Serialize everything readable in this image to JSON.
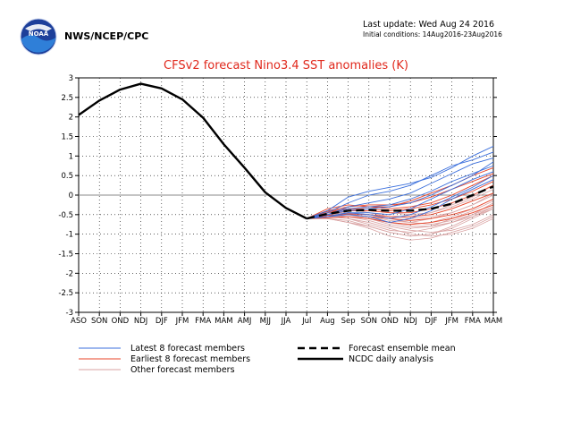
{
  "header": {
    "agency": "NWS/NCEP/CPC",
    "last_update": "Last update: Wed Aug 24 2016",
    "initial_conditions": "Initial conditions: 14Aug2016-23Aug2016",
    "logo_text": "NOAA"
  },
  "colors": {
    "title": "#e0281c",
    "latest": "#3b6fdc",
    "earliest": "#e8452a",
    "other": "#d9a2a2",
    "analysis": "#000000",
    "ensemble": "#000000",
    "grid": "#000000",
    "zero_line": "#888888"
  },
  "chart_data": {
    "type": "line",
    "title": "CFSv2 forecast Nino3.4 SST anomalies (K)",
    "xlabel": "",
    "ylabel": "",
    "categories": [
      "ASO",
      "SON",
      "OND",
      "NDJ",
      "DJF",
      "JFM",
      "FMA",
      "MAM",
      "AMJ",
      "MJJ",
      "JJA",
      "Jul",
      "Aug",
      "Sep",
      "SON",
      "OND",
      "NDJ",
      "DJF",
      "JFM",
      "FMA",
      "MAM"
    ],
    "ylim": [
      -3,
      3
    ],
    "yticks": [
      "3",
      "2.5",
      "2",
      "1.5",
      "1",
      "0.5",
      "0",
      "-0.5",
      "-1",
      "-1.5",
      "-2",
      "-2.5",
      "-3"
    ],
    "grid": true,
    "legend_position": "bottom",
    "legend": {
      "latest": "Latest 8 forecast members",
      "earliest": "Earliest 8 forecast members",
      "other": "Other forecast members",
      "ensemble": "Forecast ensemble mean",
      "analysis": "NCDC daily analysis"
    },
    "analysis": {
      "name": "NCDC daily analysis",
      "x": [
        0,
        1,
        2,
        3,
        4,
        5,
        6,
        7,
        8,
        9,
        10,
        11
      ],
      "values": [
        2.05,
        2.42,
        2.7,
        2.85,
        2.73,
        2.45,
        1.98,
        1.3,
        0.7,
        0.07,
        -0.33,
        -0.6
      ]
    },
    "ensemble_mean": {
      "name": "Forecast ensemble mean",
      "x": [
        11,
        12,
        13,
        14,
        15,
        16,
        17,
        18,
        19,
        20
      ],
      "values": [
        -0.6,
        -0.48,
        -0.4,
        -0.38,
        -0.4,
        -0.4,
        -0.35,
        -0.22,
        0.0,
        0.22
      ]
    },
    "forecast_x": [
      11,
      12,
      13,
      14,
      15,
      16,
      17,
      18,
      19,
      20
    ],
    "latest_members": [
      [
        -0.6,
        -0.4,
        -0.05,
        0.1,
        0.2,
        0.3,
        0.45,
        0.7,
        1.0,
        1.25
      ],
      [
        -0.6,
        -0.45,
        -0.2,
        0.0,
        0.1,
        0.25,
        0.5,
        0.75,
        0.9,
        1.1
      ],
      [
        -0.6,
        -0.5,
        -0.3,
        -0.2,
        -0.1,
        0.05,
        0.3,
        0.55,
        0.8,
        0.95
      ],
      [
        -0.6,
        -0.5,
        -0.35,
        -0.3,
        -0.25,
        -0.1,
        0.1,
        0.35,
        0.55,
        0.75
      ],
      [
        -0.6,
        -0.55,
        -0.45,
        -0.45,
        -0.5,
        -0.35,
        -0.1,
        0.15,
        0.4,
        0.6
      ],
      [
        -0.6,
        -0.55,
        -0.5,
        -0.55,
        -0.7,
        -0.6,
        -0.4,
        -0.1,
        0.15,
        0.4
      ],
      [
        -0.6,
        -0.5,
        -0.4,
        -0.35,
        -0.3,
        -0.2,
        0.0,
        0.25,
        0.5,
        0.85
      ],
      [
        -0.6,
        -0.55,
        -0.45,
        -0.5,
        -0.6,
        -0.5,
        -0.3,
        -0.05,
        0.2,
        0.5
      ]
    ],
    "earliest_members": [
      [
        -0.6,
        -0.35,
        -0.25,
        -0.3,
        -0.3,
        -0.15,
        0.05,
        0.25,
        0.5,
        0.7
      ],
      [
        -0.6,
        -0.42,
        -0.35,
        -0.3,
        -0.35,
        -0.3,
        -0.2,
        0.0,
        0.25,
        0.5
      ],
      [
        -0.6,
        -0.5,
        -0.4,
        -0.4,
        -0.45,
        -0.45,
        -0.35,
        -0.2,
        0.0,
        0.25
      ],
      [
        -0.6,
        -0.55,
        -0.48,
        -0.5,
        -0.55,
        -0.55,
        -0.5,
        -0.35,
        -0.15,
        0.05
      ],
      [
        -0.6,
        -0.52,
        -0.5,
        -0.55,
        -0.6,
        -0.65,
        -0.6,
        -0.5,
        -0.35,
        -0.1
      ],
      [
        -0.6,
        -0.45,
        -0.35,
        -0.35,
        -0.4,
        -0.35,
        -0.25,
        -0.1,
        0.1,
        0.35
      ],
      [
        -0.6,
        -0.4,
        -0.3,
        -0.25,
        -0.25,
        -0.2,
        -0.05,
        0.15,
        0.35,
        0.55
      ],
      [
        -0.6,
        -0.58,
        -0.55,
        -0.6,
        -0.7,
        -0.75,
        -0.7,
        -0.6,
        -0.45,
        -0.25
      ]
    ],
    "other_members": [
      [
        -0.6,
        -0.55,
        -0.6,
        -0.7,
        -0.85,
        -1.0,
        -1.05,
        -1.0,
        -0.85,
        -0.6
      ],
      [
        -0.6,
        -0.5,
        -0.55,
        -0.65,
        -0.8,
        -0.9,
        -0.95,
        -0.9,
        -0.75,
        -0.5
      ],
      [
        -0.6,
        -0.6,
        -0.7,
        -0.85,
        -1.05,
        -1.15,
        -1.1,
        -0.95,
        -0.8,
        -0.55
      ],
      [
        -0.6,
        -0.45,
        -0.45,
        -0.5,
        -0.6,
        -0.7,
        -0.75,
        -0.65,
        -0.5,
        -0.3
      ],
      [
        -0.6,
        -0.55,
        -0.55,
        -0.6,
        -0.7,
        -0.75,
        -0.7,
        -0.55,
        -0.35,
        -0.1
      ],
      [
        -0.6,
        -0.4,
        -0.35,
        -0.45,
        -0.55,
        -0.6,
        -0.55,
        -0.45,
        -0.25,
        0.0
      ],
      [
        -0.6,
        -0.6,
        -0.65,
        -0.8,
        -0.95,
        -1.05,
        -1.0,
        -0.85,
        -0.6,
        -0.35
      ],
      [
        -0.6,
        -0.5,
        -0.5,
        -0.55,
        -0.65,
        -0.7,
        -0.6,
        -0.45,
        -0.25,
        0.05
      ],
      [
        -0.6,
        -0.45,
        -0.4,
        -0.4,
        -0.45,
        -0.5,
        -0.45,
        -0.3,
        -0.1,
        0.15
      ],
      [
        -0.6,
        -0.55,
        -0.6,
        -0.75,
        -0.9,
        -0.95,
        -0.85,
        -0.7,
        -0.5,
        -0.2
      ],
      [
        -0.6,
        -0.5,
        -0.45,
        -0.5,
        -0.55,
        -0.55,
        -0.45,
        -0.25,
        -0.05,
        0.25
      ],
      [
        -0.6,
        -0.6,
        -0.7,
        -0.8,
        -0.95,
        -1.05,
        -1.0,
        -0.8,
        -0.55,
        -0.3
      ],
      [
        -0.6,
        -0.48,
        -0.48,
        -0.55,
        -0.7,
        -0.8,
        -0.8,
        -0.7,
        -0.55,
        -0.35
      ],
      [
        -0.6,
        -0.52,
        -0.5,
        -0.6,
        -0.75,
        -0.85,
        -0.8,
        -0.6,
        -0.4,
        -0.15
      ]
    ]
  }
}
